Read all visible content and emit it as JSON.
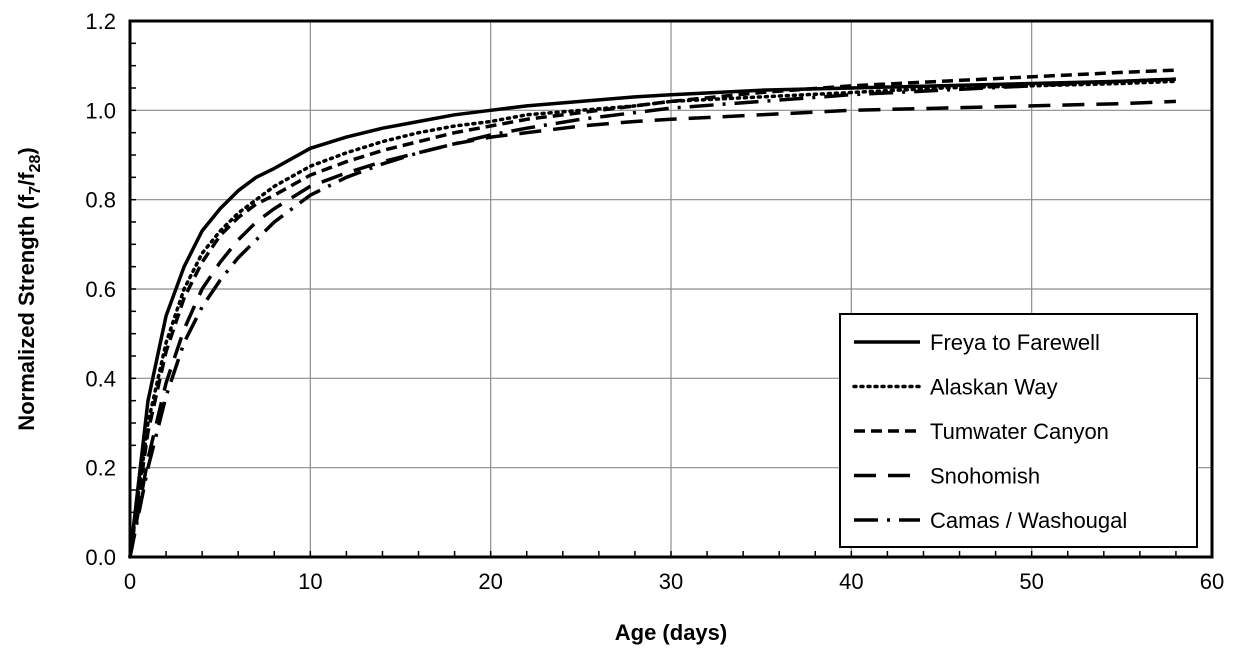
{
  "chart_data": {
    "type": "line",
    "xlabel": "Age (days)",
    "ylabel": {
      "prefix": "Normalized Strength (f",
      "sub1": "7",
      "mid": "/f",
      "sub2": "28",
      "suffix": ")"
    },
    "xlim": [
      0,
      60
    ],
    "ylim": [
      0,
      1.2
    ],
    "xticks": [
      0,
      10,
      20,
      30,
      40,
      50,
      60
    ],
    "yticks": [
      "0.0",
      "0.2",
      "0.4",
      "0.6",
      "0.8",
      "1.0",
      "1.2"
    ],
    "grid": true,
    "legend_position": "bottom-right",
    "series": [
      {
        "name": "Freya to Farewell",
        "style": "solid",
        "color": "#000000",
        "x": [
          0,
          1,
          2,
          3,
          4,
          5,
          6,
          7,
          8,
          10,
          12,
          14,
          16,
          18,
          20,
          22,
          25,
          28,
          30,
          35,
          40,
          45,
          50,
          55,
          58
        ],
        "y": [
          0,
          0.35,
          0.54,
          0.65,
          0.73,
          0.78,
          0.82,
          0.85,
          0.87,
          0.915,
          0.94,
          0.96,
          0.975,
          0.99,
          1.0,
          1.01,
          1.02,
          1.03,
          1.035,
          1.045,
          1.05,
          1.055,
          1.06,
          1.065,
          1.07
        ]
      },
      {
        "name": "Alaskan Way",
        "style": "dotted",
        "color": "#000000",
        "x": [
          0,
          1,
          2,
          3,
          4,
          5,
          6,
          7,
          8,
          10,
          12,
          14,
          16,
          18,
          20,
          22,
          25,
          28,
          30,
          35,
          40,
          45,
          50,
          55,
          58
        ],
        "y": [
          0,
          0.3,
          0.48,
          0.6,
          0.68,
          0.73,
          0.77,
          0.8,
          0.83,
          0.875,
          0.905,
          0.93,
          0.95,
          0.965,
          0.975,
          0.99,
          1.0,
          1.01,
          1.02,
          1.03,
          1.04,
          1.05,
          1.055,
          1.06,
          1.065
        ]
      },
      {
        "name": "Tumwater Canyon",
        "style": "dashed",
        "color": "#000000",
        "x": [
          0,
          1,
          2,
          3,
          4,
          5,
          6,
          7,
          8,
          10,
          12,
          14,
          16,
          18,
          20,
          22,
          25,
          28,
          30,
          35,
          40,
          45,
          50,
          55,
          58
        ],
        "y": [
          0,
          0.28,
          0.46,
          0.58,
          0.66,
          0.72,
          0.76,
          0.79,
          0.81,
          0.855,
          0.885,
          0.91,
          0.93,
          0.95,
          0.965,
          0.98,
          0.995,
          1.01,
          1.02,
          1.04,
          1.055,
          1.065,
          1.075,
          1.085,
          1.09
        ]
      },
      {
        "name": "Snohomish",
        "style": "longdash",
        "color": "#000000",
        "x": [
          0,
          1,
          2,
          3,
          4,
          5,
          6,
          7,
          8,
          10,
          12,
          14,
          16,
          18,
          20,
          22,
          25,
          28,
          30,
          35,
          40,
          45,
          50,
          55,
          58
        ],
        "y": [
          0,
          0.22,
          0.39,
          0.51,
          0.6,
          0.66,
          0.71,
          0.75,
          0.78,
          0.83,
          0.86,
          0.885,
          0.905,
          0.925,
          0.94,
          0.95,
          0.965,
          0.975,
          0.98,
          0.99,
          1.0,
          1.005,
          1.01,
          1.015,
          1.02
        ]
      },
      {
        "name": "Camas / Washougal",
        "style": "dashdot",
        "color": "#000000",
        "x": [
          0,
          1,
          2,
          3,
          4,
          5,
          6,
          7,
          8,
          10,
          12,
          14,
          16,
          18,
          20,
          22,
          25,
          28,
          30,
          35,
          40,
          45,
          50,
          55,
          58
        ],
        "y": [
          0,
          0.2,
          0.36,
          0.48,
          0.56,
          0.62,
          0.67,
          0.71,
          0.75,
          0.81,
          0.85,
          0.88,
          0.905,
          0.925,
          0.945,
          0.96,
          0.98,
          0.995,
          1.005,
          1.02,
          1.035,
          1.045,
          1.055,
          1.065,
          1.07
        ]
      }
    ]
  }
}
